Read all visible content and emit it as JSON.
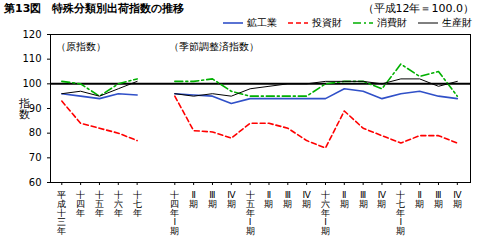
{
  "chart_data": [
    {
      "type": "line",
      "title": "第13図　特殊分類別出荷指数の推移",
      "annotations": [
        "（平成12年＝100.0）"
      ],
      "subtitle": "（原指数）",
      "y_label": "指数",
      "categories": [
        "平成十三年",
        "十四年",
        "十五年",
        "十六年",
        "十七年"
      ],
      "series": [
        {
          "name": "鉱工業",
          "color": "#3050c8",
          "line_style": "solid",
          "values": [
            96,
            95,
            94,
            96,
            95.5
          ]
        },
        {
          "name": "投資財",
          "color": "#ff0000",
          "line_style": "dashed",
          "values": [
            93,
            84,
            82,
            80,
            77
          ]
        },
        {
          "name": "消費財",
          "color": "#00b000",
          "line_style": "dashdot",
          "values": [
            101,
            100,
            95,
            100,
            102
          ]
        },
        {
          "name": "生産財",
          "color": "#000000",
          "line_style": "solid",
          "values": [
            96,
            97,
            95,
            98,
            101
          ]
        }
      ],
      "ylim": [
        60,
        120
      ],
      "yticks": [
        60,
        70,
        80,
        90,
        100,
        110,
        120
      ],
      "baseline": 100
    },
    {
      "type": "line",
      "subtitle": "（季節調整済指数）",
      "legend": "top",
      "categories": [
        "十四年Ⅰ期",
        "Ⅱ期",
        "Ⅲ期",
        "Ⅳ期",
        "十五年Ⅰ期",
        "Ⅱ期",
        "Ⅲ期",
        "Ⅳ期",
        "十六年Ⅰ期",
        "Ⅱ期",
        "Ⅲ期",
        "Ⅳ期",
        "十七年Ⅰ期",
        "Ⅱ期",
        "Ⅲ期",
        "Ⅳ期"
      ],
      "series": [
        {
          "name": "鉱工業",
          "color": "#3050c8",
          "line_style": "solid",
          "values": [
            96,
            95.5,
            95,
            92,
            94,
            94,
            94,
            94,
            94,
            98,
            97,
            94,
            96,
            97,
            95,
            94
          ]
        },
        {
          "name": "投資財",
          "color": "#ff0000",
          "line_style": "dashed",
          "values": [
            95,
            81,
            80.5,
            78,
            84,
            84,
            82,
            77,
            74,
            89,
            82,
            79,
            76,
            79,
            79,
            76
          ]
        },
        {
          "name": "消費財",
          "color": "#00b000",
          "line_style": "dashdot",
          "values": [
            101,
            101,
            102,
            97,
            95,
            95,
            95,
            95,
            100,
            101,
            101,
            98,
            108,
            103,
            105,
            95
          ]
        },
        {
          "name": "生産財",
          "color": "#000000",
          "line_style": "solid",
          "values": [
            96,
            95,
            96,
            95,
            98,
            99,
            100,
            100,
            101,
            101,
            101,
            100,
            102,
            102,
            99,
            101
          ]
        }
      ]
    }
  ]
}
